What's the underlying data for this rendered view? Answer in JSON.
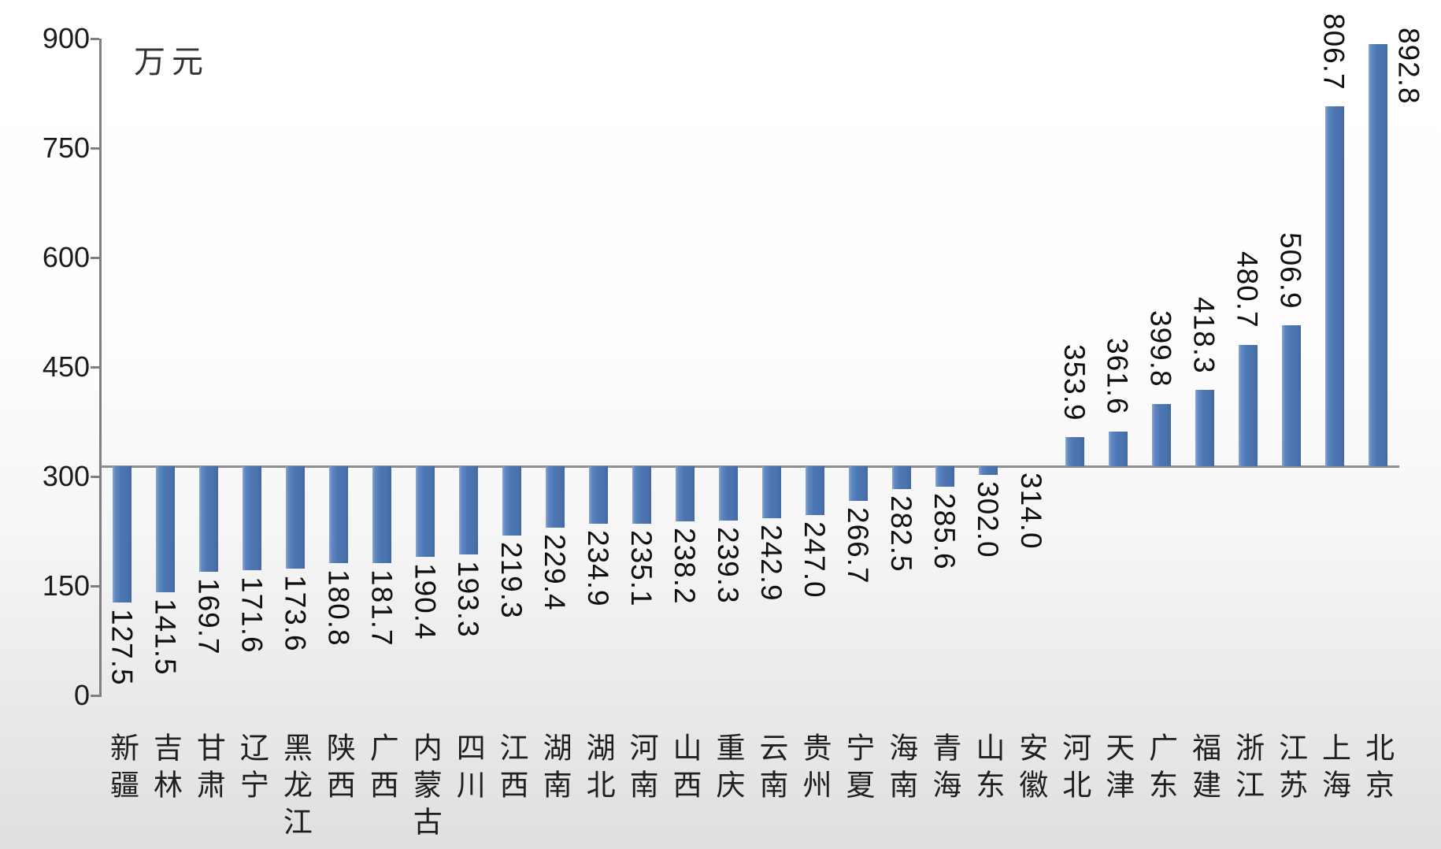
{
  "chart_data": {
    "type": "bar",
    "title": "",
    "unit_label": "万元",
    "categories": [
      "新疆",
      "吉林",
      "甘肃",
      "辽宁",
      "黑龙江",
      "陕西",
      "广西",
      "内蒙古",
      "四川",
      "江西",
      "湖南",
      "湖北",
      "河南",
      "山西",
      "重庆",
      "云南",
      "贵州",
      "宁夏",
      "海南",
      "青海",
      "山东",
      "安徽",
      "河北",
      "天津",
      "广东",
      "福建",
      "浙江",
      "江苏",
      "上海",
      "北京"
    ],
    "values": [
      127.5,
      141.5,
      169.7,
      171.6,
      173.6,
      180.8,
      181.7,
      190.4,
      193.3,
      219.3,
      229.4,
      234.9,
      235.1,
      238.2,
      239.3,
      242.9,
      247.0,
      266.7,
      282.5,
      285.6,
      302.0,
      314.0,
      353.9,
      361.6,
      399.8,
      418.3,
      480.7,
      506.9,
      806.7,
      892.8
    ],
    "value_labels": [
      "127.5",
      "141.5",
      "169.7",
      "171.6",
      "173.6",
      "180.8",
      "181.7",
      "190.4",
      "193.3",
      "219.3",
      "229.4",
      "234.9",
      "235.1",
      "238.2",
      "239.3",
      "242.9",
      "247.0",
      "266.7",
      "282.5",
      "285.6",
      "302.0",
      "314.0",
      "353.9",
      "361.6",
      "399.8",
      "418.3",
      "480.7",
      "506.9",
      "806.7",
      "892.8"
    ],
    "ylim": [
      0,
      900
    ],
    "ytick_labels": [
      "900",
      "750",
      "600",
      "450",
      "300",
      "150",
      "0"
    ],
    "ytick_values": [
      900,
      750,
      600,
      450,
      300,
      150,
      0
    ],
    "axis_crosses_at": 314.0,
    "bar_color": "#4c76b3",
    "axis_color": "#7f7f7f",
    "grid": false,
    "legend": "none"
  }
}
